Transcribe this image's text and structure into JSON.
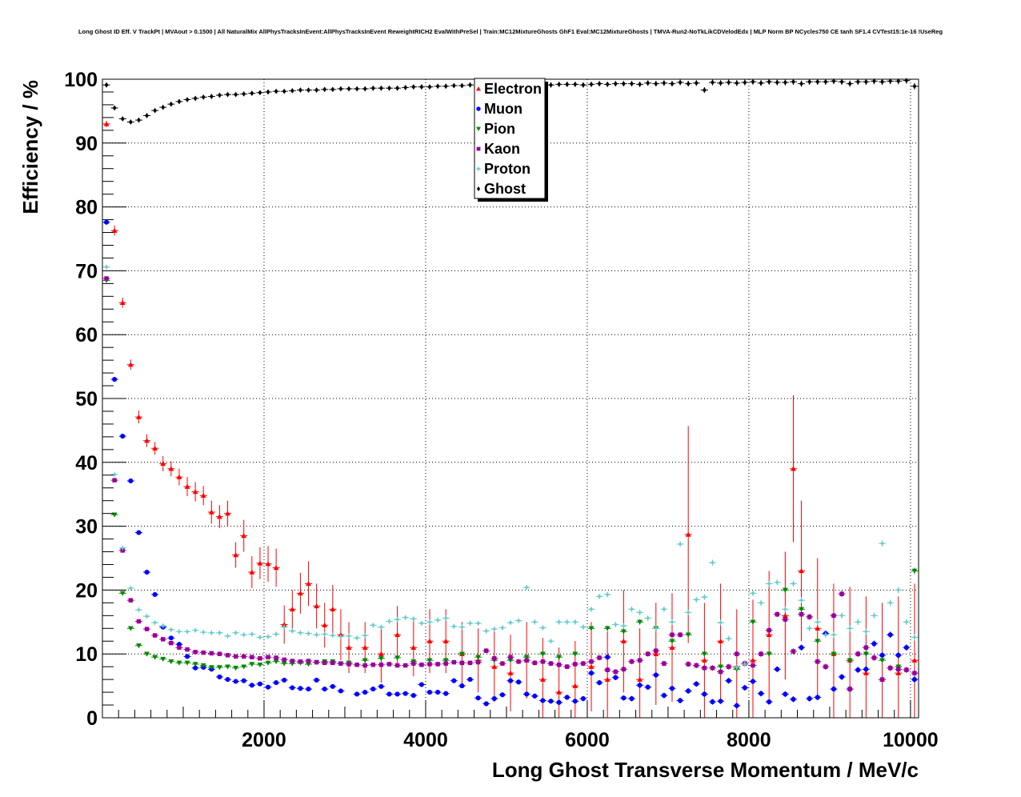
{
  "chart_data": {
    "type": "scatter",
    "title": "Long Ghost ID Eff. V TrackPt | MVAout > 0.1500 | All NaturalMix AllPhysTracksInEvent:AllPhysTracksInEvent ReweightRICH2 EvalWithPreSel | Train:MC12MixtureGhosts GhF1 Eval:MC12MixtureGhosts | TMVA-Run2-NoTkLikCDVelodEdx | MLP Norm BP NCycles750 CE tanh SF1.4 CVTest15:1e-16 !UseReg",
    "xlabel": "Long Ghost Transverse Momentum / MeV/c",
    "ylabel": "Efficiency / %",
    "xlim": [
      0,
      10100
    ],
    "ylim": [
      0,
      100
    ],
    "x_ticks": [
      2000,
      4000,
      6000,
      8000,
      10000
    ],
    "y_ticks": [
      0,
      10,
      20,
      30,
      40,
      50,
      60,
      70,
      80,
      90,
      100
    ],
    "grid": true,
    "legend_position": "top-center",
    "series": [
      {
        "name": "Electron",
        "color": "#ff0000",
        "marker": "triangle-up",
        "x": [
          50,
          150,
          250,
          350,
          450,
          550,
          650,
          750,
          850,
          950,
          1050,
          1150,
          1250,
          1350,
          1450,
          1550,
          1650,
          1750,
          1850,
          1950,
          2050,
          2150,
          2250,
          2350,
          2450,
          2550,
          2650,
          2750,
          2850,
          2950,
          3050,
          3250,
          3450,
          3650,
          3850,
          4050,
          4250,
          4450,
          4650,
          4850,
          5050,
          5250,
          5450,
          5650,
          5850,
          6050,
          6250,
          6450,
          6650,
          6850,
          7050,
          7250,
          7450,
          7650,
          7850,
          8050,
          8250,
          8450,
          8550,
          8650,
          8850,
          9050,
          9250,
          9450,
          9650,
          9850,
          10050
        ],
        "y": [
          93,
          76.3,
          65,
          55.3,
          47.1,
          43.4,
          42.2,
          39.8,
          39,
          37.7,
          36.2,
          35.4,
          34.8,
          32.2,
          31.5,
          32,
          25.5,
          28.5,
          22.8,
          24.2,
          24.1,
          23.5,
          14.6,
          17,
          19.5,
          21,
          17.5,
          14.5,
          17,
          13,
          11,
          11,
          10,
          13,
          11,
          12,
          12,
          10,
          9,
          8,
          7,
          9,
          6,
          4,
          5,
          8,
          6,
          12,
          6,
          10,
          11,
          28.7,
          9,
          12,
          8,
          9,
          13,
          16,
          39,
          23,
          14,
          10,
          9,
          7,
          6,
          7,
          9
        ],
        "yerr": [
          0.5,
          0.8,
          0.8,
          0.8,
          1,
          1,
          1,
          1.2,
          1.2,
          1.3,
          1.5,
          1.5,
          1.5,
          1.8,
          1.8,
          2,
          2,
          2.5,
          2.5,
          2.5,
          2.8,
          3,
          3,
          3,
          3.2,
          3.5,
          3.5,
          3.5,
          3.8,
          4,
          4,
          4,
          4.5,
          4.5,
          4.5,
          5,
          5,
          5,
          5,
          5.5,
          6,
          6,
          6.5,
          7,
          7,
          7,
          7.5,
          8,
          8,
          8,
          8.5,
          17,
          9,
          9,
          9,
          9.5,
          10,
          10,
          11.5,
          11,
          11,
          11,
          11.5,
          12,
          12,
          12,
          12
        ]
      },
      {
        "name": "Muon",
        "color": "#0000ff",
        "marker": "circle",
        "x": [
          50,
          150,
          250,
          350,
          450,
          550,
          650,
          750,
          850,
          950,
          1050,
          1150,
          1250,
          1350,
          1450,
          1550,
          1650,
          1750,
          1850,
          1950,
          2050,
          2150,
          2250,
          2350,
          2450,
          2550,
          2650,
          2750,
          2850,
          2950,
          3150,
          3250,
          3350,
          3450,
          3550,
          3650,
          3750,
          3850,
          3950,
          4050,
          4150,
          4250,
          4350,
          4450,
          4550,
          4650,
          4750,
          4850,
          4950,
          5050,
          5150,
          5250,
          5350,
          5450,
          5550,
          5650,
          5750,
          5850,
          5950,
          6050,
          6150,
          6250,
          6350,
          6450,
          6550,
          6650,
          6750,
          6850,
          6950,
          7050,
          7150,
          7250,
          7350,
          7450,
          7550,
          7650,
          7750,
          7850,
          7950,
          8050,
          8150,
          8250,
          8350,
          8450,
          8550,
          8650,
          8750,
          8850,
          8950,
          9050,
          9150,
          9250,
          9350,
          9450,
          9550,
          9650,
          9750,
          9850,
          9950,
          10050
        ],
        "y": [
          77.6,
          53,
          44.1,
          37.1,
          29,
          22.8,
          19.3,
          14.2,
          12.5,
          11.5,
          9.6,
          7.8,
          7.9,
          7.6,
          6.4,
          6,
          5.7,
          5.8,
          5.1,
          5.3,
          4.8,
          5.5,
          5.9,
          4.7,
          4.6,
          4.5,
          5.9,
          4.5,
          4.9,
          4.2,
          3.7,
          4,
          4.5,
          4.9,
          3.7,
          3.7,
          3.8,
          3.5,
          5.2,
          4,
          4,
          3.8,
          5.8,
          5,
          6,
          3.1,
          2.2,
          3,
          3.6,
          5.8,
          5.6,
          3.7,
          3.4,
          2.7,
          2.6,
          2.4,
          3.2,
          2.6,
          3,
          7,
          5.5,
          9.5,
          6.3,
          3.1,
          3,
          5.1,
          4.8,
          6.7,
          3.5,
          4.6,
          2.7,
          4.2,
          5.3,
          3.7,
          2.5,
          2.6,
          5.8,
          1.9,
          4.7,
          5.7,
          3.8,
          2.5,
          7.6,
          3.7,
          2.9,
          11,
          3,
          3.2,
          13.2,
          4.5,
          6.4,
          4.5,
          7.5,
          7.6,
          11.6,
          9.8,
          13,
          9.8,
          11,
          6
        ]
      },
      {
        "name": "Pion",
        "color": "#008800",
        "marker": "triangle-down",
        "x": [
          50,
          150,
          250,
          350,
          450,
          550,
          650,
          750,
          850,
          950,
          1050,
          1150,
          1250,
          1350,
          1450,
          1550,
          1650,
          1750,
          1850,
          1950,
          2050,
          2150,
          2250,
          2350,
          2450,
          2550,
          2650,
          2750,
          2850,
          2950,
          3050,
          3250,
          3450,
          3650,
          3850,
          4050,
          4250,
          4450,
          4650,
          4850,
          5050,
          5250,
          5450,
          5650,
          5850,
          6050,
          6250,
          6450,
          6650,
          6850,
          7050,
          7250,
          7450,
          7650,
          7850,
          8050,
          8250,
          8450,
          8650,
          8850,
          9050,
          9250,
          9450,
          9650,
          9850,
          10050
        ],
        "y": [
          68.5,
          31.8,
          19.5,
          14,
          11.3,
          10,
          9.5,
          9.2,
          8.8,
          8.6,
          8.6,
          8.4,
          8.2,
          7.9,
          7.9,
          8,
          7.8,
          8,
          8.4,
          8.3,
          8.6,
          8.8,
          8.5,
          8.5,
          8.6,
          8.4,
          8.7,
          8.8,
          8.8,
          8.5,
          8.6,
          9,
          9.3,
          9.4,
          8.8,
          9,
          9,
          10,
          9.5,
          9,
          9,
          9.5,
          10,
          9.5,
          10,
          14,
          14,
          13.5,
          15,
          14,
          12,
          13,
          10,
          8,
          7.6,
          15,
          10,
          20,
          17,
          12,
          10,
          9,
          10,
          9,
          8,
          23
        ]
      },
      {
        "name": "Kaon",
        "color": "#990099",
        "marker": "square",
        "x": [
          50,
          150,
          250,
          350,
          450,
          550,
          650,
          750,
          850,
          950,
          1050,
          1150,
          1250,
          1350,
          1450,
          1550,
          1650,
          1750,
          1850,
          1950,
          2050,
          2150,
          2250,
          2350,
          2450,
          2550,
          2650,
          2750,
          2850,
          2950,
          3050,
          3150,
          3250,
          3350,
          3450,
          3550,
          3650,
          3750,
          3850,
          3950,
          4050,
          4150,
          4250,
          4350,
          4450,
          4550,
          4650,
          4750,
          4850,
          4950,
          5050,
          5150,
          5250,
          5350,
          5450,
          5550,
          5650,
          5750,
          5850,
          5950,
          6050,
          6150,
          6250,
          6350,
          6450,
          6550,
          6650,
          6750,
          6850,
          6950,
          7050,
          7150,
          7250,
          7350,
          7450,
          7550,
          7650,
          7750,
          7850,
          7950,
          8050,
          8150,
          8250,
          8350,
          8450,
          8550,
          8650,
          8750,
          8850,
          8950,
          9050,
          9150,
          9250,
          9350,
          9450,
          9550,
          9650,
          9750,
          9850,
          9950,
          10050
        ],
        "y": [
          68.8,
          37.2,
          26.2,
          18.4,
          15.1,
          13.9,
          12.9,
          12.3,
          11.7,
          11,
          10.7,
          10.3,
          10.2,
          10.1,
          10,
          9.8,
          9.6,
          9.6,
          9.5,
          9.3,
          9.5,
          9.4,
          9.1,
          8.9,
          8.8,
          8.9,
          8.7,
          8.6,
          8.6,
          8.5,
          8.4,
          8.3,
          8.2,
          8.3,
          8.3,
          8.4,
          8.2,
          8.2,
          8.5,
          8.3,
          8.4,
          8.4,
          8.5,
          8.7,
          8.6,
          8.6,
          8.7,
          10.5,
          9.3,
          8.5,
          9.5,
          8.8,
          9,
          8.6,
          8.8,
          8.5,
          8.3,
          8,
          8.4,
          8.5,
          8.8,
          9.4,
          7.5,
          7.2,
          7.6,
          8.8,
          9,
          10,
          10.5,
          8.5,
          13,
          13,
          8.4,
          8.2,
          7.8,
          7.8,
          7.2,
          8,
          10,
          8.5,
          8.2,
          10,
          13.7,
          16.2,
          15.4,
          10.4,
          16.2,
          15.8,
          8.8,
          8,
          16,
          19.4,
          4.5,
          10,
          11,
          9.4,
          6,
          7.8,
          7.6,
          7.5,
          7
        ]
      },
      {
        "name": "Proton",
        "color": "#66cccc",
        "marker": "star",
        "x": [
          50,
          150,
          250,
          350,
          450,
          550,
          650,
          750,
          850,
          950,
          1050,
          1150,
          1250,
          1350,
          1450,
          1550,
          1650,
          1750,
          1850,
          1950,
          2050,
          2150,
          2250,
          2350,
          2450,
          2550,
          2650,
          2750,
          2850,
          2950,
          3050,
          3150,
          3250,
          3350,
          3450,
          3550,
          3650,
          3750,
          3850,
          3950,
          4050,
          4150,
          4250,
          4350,
          4450,
          4550,
          4650,
          4750,
          4850,
          4950,
          5050,
          5150,
          5250,
          5350,
          5450,
          5550,
          5650,
          5750,
          5850,
          5950,
          6050,
          6150,
          6250,
          6350,
          6450,
          6550,
          6650,
          6750,
          6850,
          6950,
          7050,
          7150,
          7250,
          7350,
          7450,
          7550,
          7650,
          7750,
          7850,
          7950,
          8050,
          8150,
          8250,
          8350,
          8450,
          8550,
          8650,
          8750,
          8850,
          8950,
          9050,
          9150,
          9250,
          9350,
          9450,
          9550,
          9650,
          9750,
          9850,
          9950,
          10050
        ],
        "y": [
          70.6,
          38.1,
          26.6,
          20.3,
          16.9,
          15.9,
          14.9,
          14.4,
          13.8,
          13.5,
          13.5,
          13.7,
          13.4,
          13.3,
          13.3,
          12.8,
          13.3,
          13,
          13.1,
          12.6,
          12.7,
          13.1,
          14.2,
          13.6,
          13.3,
          13.2,
          13,
          13.1,
          12.9,
          12.7,
          12.8,
          12.5,
          12.9,
          14.5,
          14.2,
          15.1,
          15.4,
          15.7,
          15.5,
          14.8,
          15,
          15.3,
          15.6,
          14.3,
          14.2,
          14.8,
          14.8,
          13.6,
          13.9,
          14.1,
          14.9,
          15.2,
          20.4,
          15,
          14.1,
          12,
          15,
          15,
          15,
          14.2,
          17,
          19,
          19.3,
          14.6,
          14.4,
          17,
          16.5,
          15.6,
          14,
          17,
          15,
          27.2,
          16.5,
          18.5,
          18.9,
          24.3,
          14.9,
          12.4,
          7.9,
          8.4,
          19.5,
          18,
          21,
          21.2,
          17,
          21,
          18.4,
          14,
          15,
          13,
          13,
          16,
          14,
          15,
          13.5,
          16,
          27.3,
          18,
          20,
          15,
          12.6
        ]
      },
      {
        "name": "Ghost",
        "color": "#000000",
        "marker": "diamond",
        "x": [
          50,
          150,
          250,
          350,
          450,
          550,
          650,
          750,
          850,
          950,
          1050,
          1150,
          1250,
          1350,
          1450,
          1550,
          1650,
          1750,
          1850,
          1950,
          2050,
          2150,
          2250,
          2350,
          2450,
          2550,
          2650,
          2750,
          2850,
          2950,
          3050,
          3150,
          3250,
          3350,
          3450,
          3550,
          3650,
          3750,
          3850,
          3950,
          4050,
          4150,
          4250,
          4350,
          4450,
          4550,
          4650,
          4750,
          4850,
          4950,
          5050,
          5150,
          5250,
          5350,
          5450,
          5550,
          5650,
          5750,
          5850,
          5950,
          6050,
          6150,
          6250,
          6350,
          6450,
          6550,
          6650,
          6750,
          6850,
          6950,
          7050,
          7150,
          7250,
          7350,
          7450,
          7550,
          7650,
          7750,
          7850,
          7950,
          8050,
          8150,
          8250,
          8350,
          8450,
          8550,
          8650,
          8750,
          8850,
          8950,
          9050,
          9150,
          9250,
          9350,
          9450,
          9550,
          9650,
          9750,
          9850,
          9950,
          10050
        ],
        "y": [
          99.1,
          95.5,
          93.8,
          93.3,
          93.6,
          94.3,
          95.1,
          95.6,
          96.1,
          96.5,
          96.8,
          97,
          97.2,
          97.3,
          97.5,
          97.6,
          97.6,
          97.7,
          97.8,
          97.9,
          98,
          98.1,
          98.1,
          98.2,
          98.3,
          98.3,
          98.3,
          98.4,
          98.4,
          98.5,
          98.5,
          98.5,
          98.5,
          98.6,
          98.6,
          98.6,
          98.6,
          98.7,
          98.8,
          98.8,
          98.8,
          98.9,
          98.9,
          99,
          99,
          99.1,
          99.1,
          99.1,
          99,
          99.1,
          99.1,
          99,
          99.1,
          99,
          99.1,
          99.1,
          99.2,
          99.2,
          99.2,
          99.1,
          99.2,
          99.3,
          99.2,
          99.3,
          99.3,
          99.3,
          99.2,
          99.4,
          99.3,
          99.4,
          99.3,
          99.5,
          99.3,
          99.4,
          98.3,
          99.5,
          99.4,
          99.5,
          99.4,
          99.5,
          99.6,
          99.4,
          99.6,
          99.5,
          99.5,
          99.6,
          99.3,
          99.6,
          99.6,
          99.6,
          99.7,
          99.6,
          99.3,
          99.6,
          99.6,
          99.7,
          99.6,
          99.7,
          99.7,
          99.8,
          98.9
        ]
      }
    ]
  }
}
